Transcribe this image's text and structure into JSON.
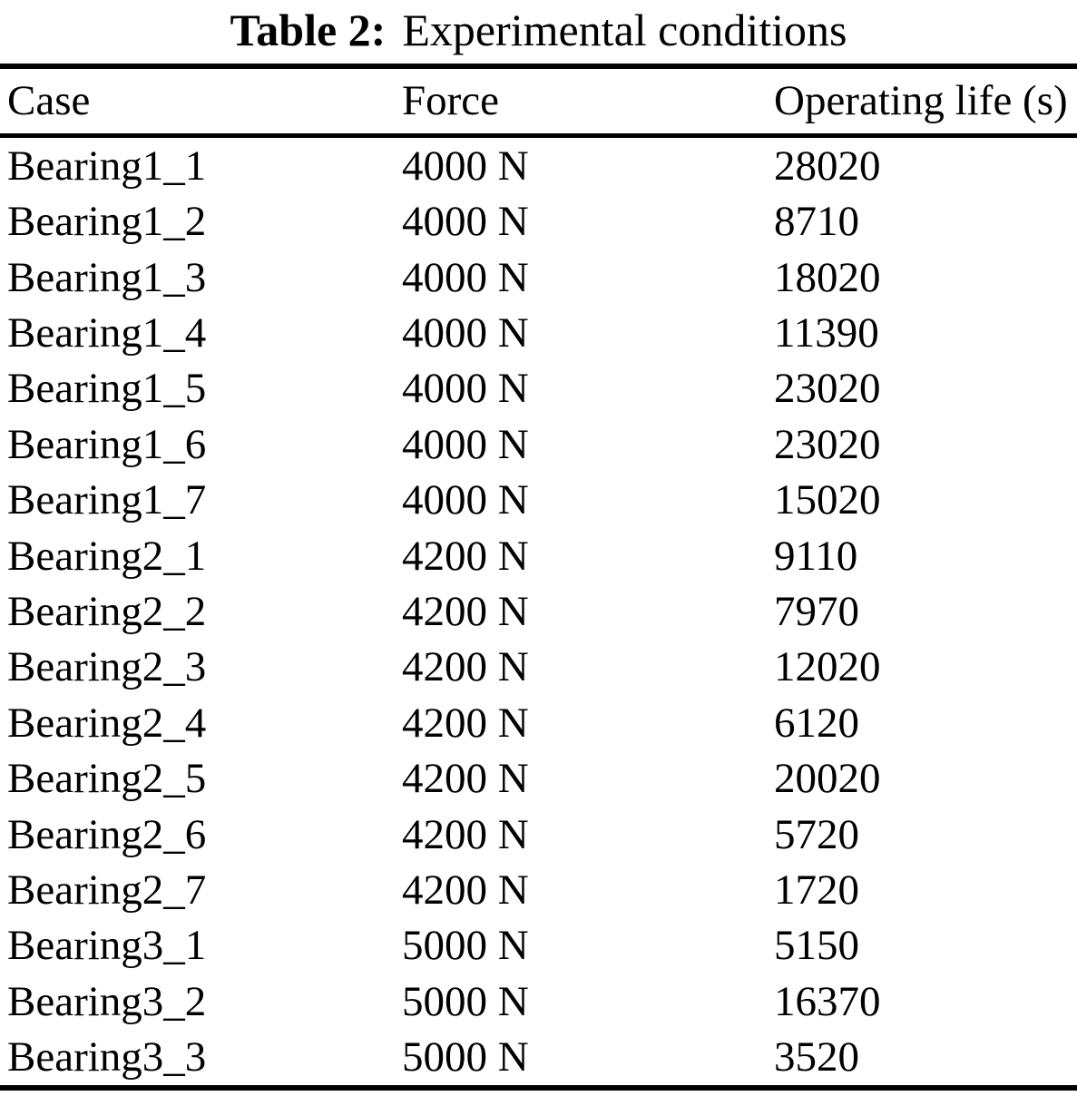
{
  "page": {
    "background": "#ffffff",
    "text_color": "#000000",
    "rule_color": "#000000"
  },
  "title": {
    "label": "Table 2:",
    "text": "Experimental conditions"
  },
  "table": {
    "columns": [
      {
        "key": "case",
        "label": "Case"
      },
      {
        "key": "force",
        "label": "Force"
      },
      {
        "key": "life",
        "label": "Operating life (s)"
      }
    ],
    "rows": [
      {
        "case": "Bearing1_1",
        "force": "4000 N",
        "life": "28020"
      },
      {
        "case": "Bearing1_2",
        "force": "4000 N",
        "life": "8710"
      },
      {
        "case": "Bearing1_3",
        "force": "4000 N",
        "life": "18020"
      },
      {
        "case": "Bearing1_4",
        "force": "4000 N",
        "life": "11390"
      },
      {
        "case": "Bearing1_5",
        "force": "4000 N",
        "life": "23020"
      },
      {
        "case": "Bearing1_6",
        "force": "4000 N",
        "life": "23020"
      },
      {
        "case": "Bearing1_7",
        "force": "4000 N",
        "life": "15020"
      },
      {
        "case": "Bearing2_1",
        "force": "4200 N",
        "life": "9110"
      },
      {
        "case": "Bearing2_2",
        "force": "4200 N",
        "life": "7970"
      },
      {
        "case": "Bearing2_3",
        "force": "4200 N",
        "life": "12020"
      },
      {
        "case": "Bearing2_4",
        "force": "4200 N",
        "life": "6120"
      },
      {
        "case": "Bearing2_5",
        "force": "4200 N",
        "life": "20020"
      },
      {
        "case": "Bearing2_6",
        "force": "4200 N",
        "life": "5720"
      },
      {
        "case": "Bearing2_7",
        "force": "4200 N",
        "life": "1720"
      },
      {
        "case": "Bearing3_1",
        "force": "5000 N",
        "life": "5150"
      },
      {
        "case": "Bearing3_2",
        "force": "5000 N",
        "life": "16370"
      },
      {
        "case": "Bearing3_3",
        "force": "5000 N",
        "life": "3520"
      }
    ]
  }
}
